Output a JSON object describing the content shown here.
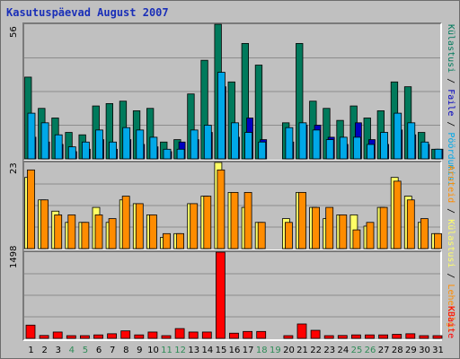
{
  "title": "Kasutuspäevad August 2007",
  "colors": {
    "visits": "#007a5c",
    "pages": "#0000c0",
    "files": "#00a8e8",
    "hits_light": "#ffff66",
    "hits_dark": "#ff8c00",
    "bytes": "#ff0000",
    "weekend_label": "#2e8b57",
    "weekday_label": "#000000"
  },
  "chart_data": [
    {
      "type": "bar",
      "panel": "visits",
      "ymax_label": "56",
      "ylim": [
        0,
        56
      ],
      "grid": true,
      "categories": [
        "1",
        "2",
        "3",
        "4",
        "5",
        "6",
        "7",
        "8",
        "9",
        "10",
        "11",
        "12",
        "13",
        "14",
        "15",
        "16",
        "17",
        "18",
        "19",
        "20",
        "21",
        "22",
        "23",
        "24",
        "25",
        "26",
        "27",
        "28",
        "29",
        "30",
        "31"
      ],
      "series": [
        {
          "name": "Külastusi",
          "values": [
            34,
            21,
            17,
            11,
            10,
            22,
            23,
            24,
            20,
            21,
            7,
            8,
            27,
            41,
            56,
            32,
            48,
            39,
            0,
            15,
            48,
            24,
            21,
            16,
            22,
            17,
            20,
            32,
            30,
            11,
            4
          ]
        },
        {
          "name": "Lehekülgi",
          "values": [
            9,
            7,
            6,
            3,
            4,
            8,
            4,
            8,
            6,
            5,
            3,
            7,
            8,
            11,
            30,
            9,
            17,
            8,
            0,
            7,
            14,
            14,
            9,
            6,
            15,
            8,
            6,
            12,
            10,
            6,
            4
          ]
        },
        {
          "name": "Faile",
          "values": [
            19,
            15,
            10,
            5,
            7,
            12,
            7,
            13,
            12,
            9,
            4,
            4,
            12,
            14,
            36,
            15,
            11,
            7,
            0,
            13,
            15,
            12,
            8,
            9,
            9,
            6,
            11,
            19,
            15,
            7,
            4
          ]
        }
      ]
    },
    {
      "type": "bar",
      "panel": "hits",
      "ymax_label": "23",
      "ylim": [
        0,
        23
      ],
      "grid": true,
      "categories": [
        "1",
        "2",
        "3",
        "4",
        "5",
        "6",
        "7",
        "8",
        "9",
        "10",
        "11",
        "12",
        "13",
        "14",
        "15",
        "16",
        "17",
        "18",
        "19",
        "20",
        "21",
        "22",
        "23",
        "24",
        "25",
        "26",
        "27",
        "28",
        "29",
        "30",
        "31"
      ],
      "series": [
        {
          "name": "Hits",
          "values": [
            19,
            13,
            10,
            7,
            7,
            11,
            7,
            13,
            12,
            9,
            3,
            4,
            12,
            14,
            23,
            15,
            11,
            7,
            0,
            8,
            15,
            11,
            8,
            9,
            9,
            6,
            11,
            19,
            14,
            7,
            4
          ]
        },
        {
          "name": "Aruteid",
          "values": [
            21,
            13,
            9,
            9,
            7,
            9,
            8,
            14,
            12,
            9,
            4,
            4,
            12,
            14,
            21,
            15,
            15,
            7,
            0,
            7,
            15,
            11,
            11,
            9,
            5,
            7,
            11,
            18,
            13,
            8,
            4
          ]
        }
      ]
    },
    {
      "type": "bar",
      "panel": "bytes",
      "ymax_label": "1498",
      "ylim": [
        0,
        1498
      ],
      "grid": true,
      "categories": [
        "1",
        "2",
        "3",
        "4",
        "5",
        "6",
        "7",
        "8",
        "9",
        "10",
        "11",
        "12",
        "13",
        "14",
        "15",
        "16",
        "17",
        "18",
        "19",
        "20",
        "21",
        "22",
        "23",
        "24",
        "25",
        "26",
        "27",
        "28",
        "29",
        "30",
        "31"
      ],
      "series": [
        {
          "name": "KBaite",
          "values": [
            230,
            50,
            110,
            40,
            40,
            60,
            80,
            130,
            60,
            110,
            40,
            170,
            110,
            110,
            1498,
            90,
            120,
            120,
            0,
            30,
            250,
            140,
            40,
            50,
            60,
            60,
            60,
            70,
            80,
            40,
            40
          ]
        }
      ]
    }
  ],
  "weekend_days": [
    4,
    5,
    11,
    12,
    18,
    19,
    25,
    26
  ],
  "legend": {
    "visits": [
      {
        "text": "Külastusi",
        "color": "#007a5c"
      },
      {
        "text": " / ",
        "color": "#000000"
      },
      {
        "text": "Faile",
        "color": "#0000c0"
      },
      {
        "text": " / ",
        "color": "#000000"
      },
      {
        "text": "Pöördumisi",
        "color": "#00a8e8"
      }
    ],
    "hits": [
      {
        "text": "Aruteid",
        "color": "#ff8c00"
      },
      {
        "text": " / ",
        "color": "#000000"
      },
      {
        "text": "Külastusi",
        "color": "#ffff66"
      },
      {
        "text": " / ",
        "color": "#000000"
      },
      {
        "text": "Lehekülgi",
        "color": "#ff8c00"
      }
    ],
    "bytes": [
      {
        "text": "KBaite",
        "color": "#ff0000"
      }
    ]
  }
}
